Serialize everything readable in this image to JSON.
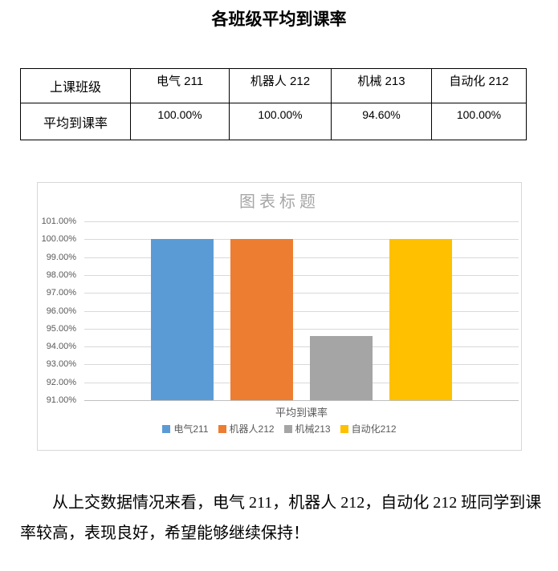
{
  "page": {
    "title": "各班级平均到课率"
  },
  "table": {
    "row_header_label": "上课班级",
    "row_value_label": "平均到课率",
    "columns": [
      "电气 211",
      "机器人 212",
      "机械 213",
      "自动化 212"
    ],
    "values": [
      "100.00%",
      "100.00%",
      "94.60%",
      "100.00%"
    ]
  },
  "chart_data": {
    "type": "bar",
    "title": "图表标题",
    "categories": [
      "平均到课率"
    ],
    "xlabel": "平均到课率",
    "series": [
      {
        "name": "电气211",
        "values": [
          100.0
        ],
        "color": "#5B9BD5"
      },
      {
        "name": "机器人212",
        "values": [
          100.0
        ],
        "color": "#ED7D31"
      },
      {
        "name": "机械213",
        "values": [
          94.6
        ],
        "color": "#A5A5A5"
      },
      {
        "name": "自动化212",
        "values": [
          100.0
        ],
        "color": "#FFC000"
      }
    ],
    "ylim": [
      91,
      101
    ],
    "ytick_step": 1,
    "ytick_labels": [
      "91.00%",
      "92.00%",
      "93.00%",
      "94.00%",
      "95.00%",
      "96.00%",
      "97.00%",
      "98.00%",
      "99.00%",
      "100.00%",
      "101.00%"
    ],
    "grid": true,
    "legend_position": "bottom",
    "title_color": "#a6a6a6",
    "gridline_color": "#d9d9d9",
    "axis_line_color": "#bfbfbf",
    "tick_label_color": "#595959"
  },
  "paragraph": {
    "lines": [
      "从上交数据情况来看，电气 211，机器人 212，自动化 212 班同学到课",
      "率较高，表现良好，希望能够继续保持！"
    ],
    "text": "从上交数据情况来看，电气 211，机器人 212，自动化 212 班同学到课率较高，表现良好，希望能够继续保持！"
  }
}
